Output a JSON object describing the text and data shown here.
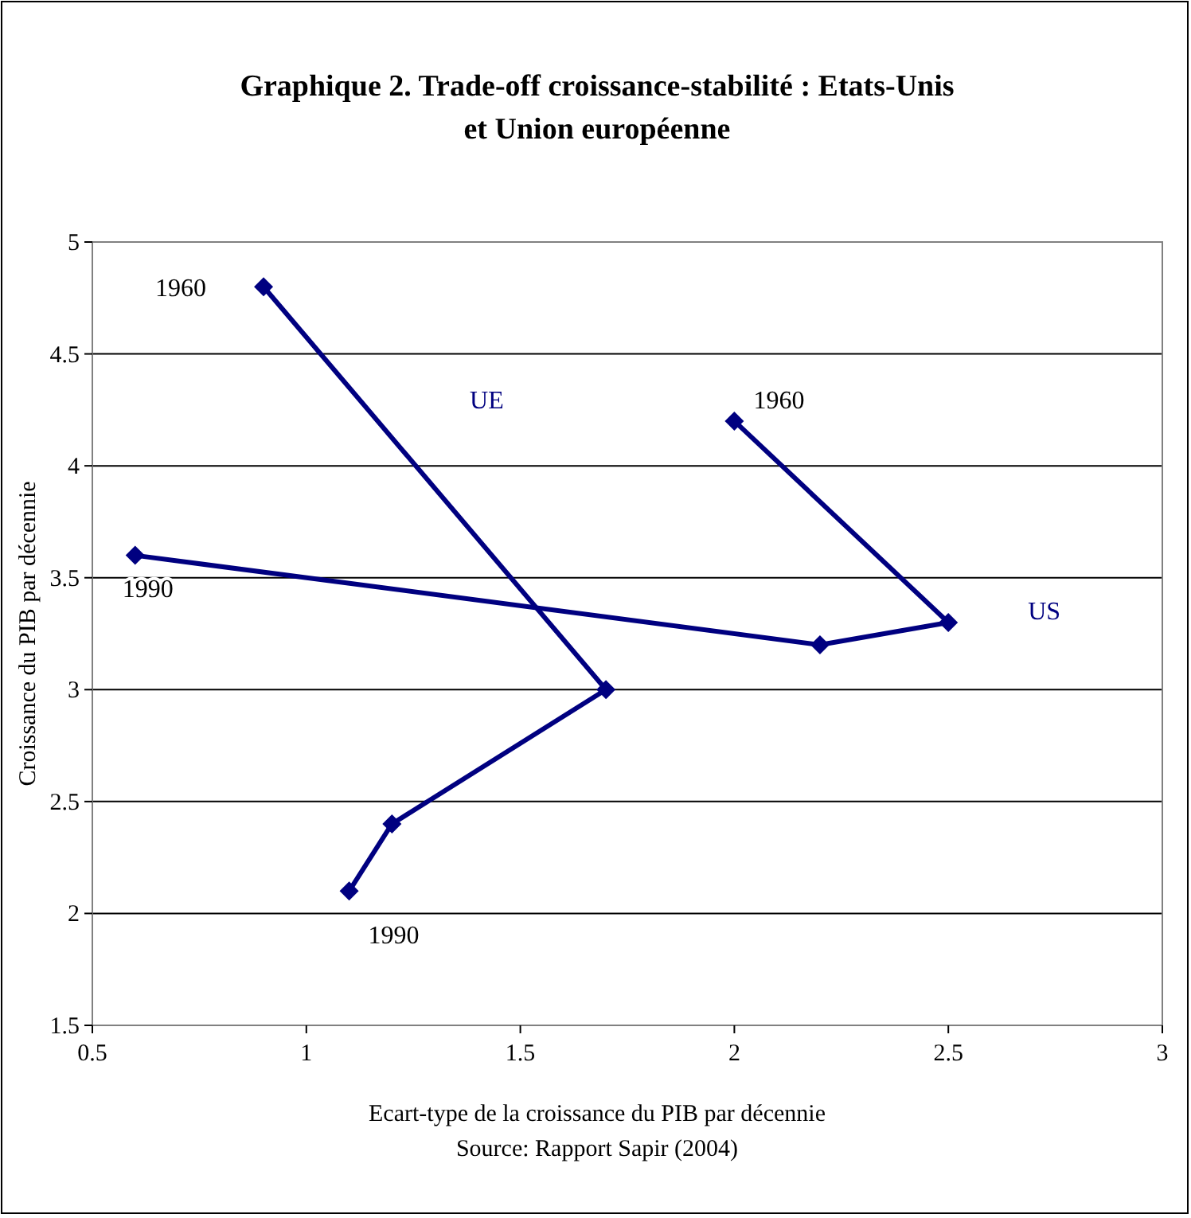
{
  "chart_data": {
    "type": "line",
    "title": "Graphique 2. Trade-off croissance-stabilité : Etats-Unis et Union européenne",
    "xlabel": "Ecart-type de la croissance du PIB par décennie",
    "ylabel": "Croissance du PIB par décennie",
    "annotations": [
      {
        "text": "1960",
        "x": 0.9,
        "y": 4.8
      },
      {
        "text": "1990",
        "x": 1.1,
        "y": 2.1
      },
      {
        "text": "1960",
        "x": 2.0,
        "y": 4.2
      },
      {
        "text": "1990",
        "x": 0.6,
        "y": 3.6
      },
      "Source: Rapport Sapir (2004)"
    ],
    "series": [
      {
        "name": "UE",
        "color": "#000080",
        "x": [
          0.9,
          1.7,
          1.2,
          1.1
        ],
        "values": [
          4.8,
          3.0,
          2.4,
          2.1
        ]
      },
      {
        "name": "US",
        "color": "#000080",
        "x": [
          2.0,
          2.5,
          2.2,
          0.6
        ],
        "values": [
          4.2,
          3.3,
          3.2,
          3.6
        ]
      }
    ],
    "xlim": [
      0.5,
      3
    ],
    "xticks": [
      0.5,
      1,
      1.5,
      2,
      2.5,
      3
    ],
    "ylim": [
      1.5,
      5
    ],
    "yticks": [
      1.5,
      2,
      2.5,
      3,
      3.5,
      4,
      4.5,
      5
    ],
    "grid": "y",
    "marker": "diamond",
    "line_style": "solid"
  }
}
